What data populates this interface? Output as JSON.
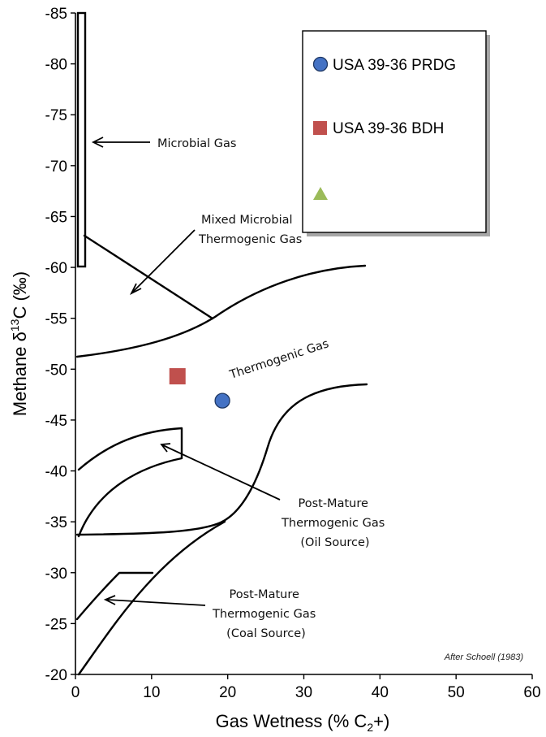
{
  "chart_data": {
    "type": "scatter",
    "title": "",
    "xlabel": "Gas Wetness (% C",
    "xlabel_sub": "2",
    "xlabel_tail": "+)",
    "ylabel": "Methane  δ",
    "ylabel_sup": "13",
    "ylabel_tail": "C (‰)",
    "xlim": [
      0,
      60
    ],
    "ylim": [
      -20,
      -85
    ],
    "x_ticks": [
      "0",
      "10",
      "20",
      "30",
      "40",
      "50",
      "60"
    ],
    "y_ticks": [
      "-20",
      "-25",
      "-30",
      "-35",
      "-40",
      "-45",
      "-50",
      "-55",
      "-60",
      "-65",
      "-70",
      "-75",
      "-80",
      "-85"
    ],
    "grid": false,
    "legend_position": "top-right",
    "series": [
      {
        "name": "USA 39-36 PRDG",
        "marker": "circle",
        "color": "#4472C4",
        "points": [
          {
            "x": 19.3,
            "y": -46.9
          }
        ]
      },
      {
        "name": "USA 39-36 BDH",
        "marker": "square",
        "color": "#C0504D",
        "points": [
          {
            "x": 13.4,
            "y": -49.3
          }
        ]
      },
      {
        "name": "",
        "marker": "triangle",
        "color": "#9BBB59",
        "points": []
      }
    ],
    "annotations": [
      {
        "id": "microbial",
        "lines": [
          "Microbial Gas"
        ]
      },
      {
        "id": "mixed",
        "lines": [
          "Mixed Microbial",
          "Thermogenic Gas"
        ]
      },
      {
        "id": "thermogenic",
        "lines": [
          "Thermogenic Gas"
        ]
      },
      {
        "id": "postmature-oil",
        "lines": [
          "Post-Mature",
          "Thermogenic Gas",
          "(Oil Source)"
        ]
      },
      {
        "id": "postmature-coal",
        "lines": [
          "Post-Mature",
          "Thermogenic Gas",
          "(Coal Source)"
        ]
      }
    ],
    "credit": "After Schoell (1983)"
  }
}
